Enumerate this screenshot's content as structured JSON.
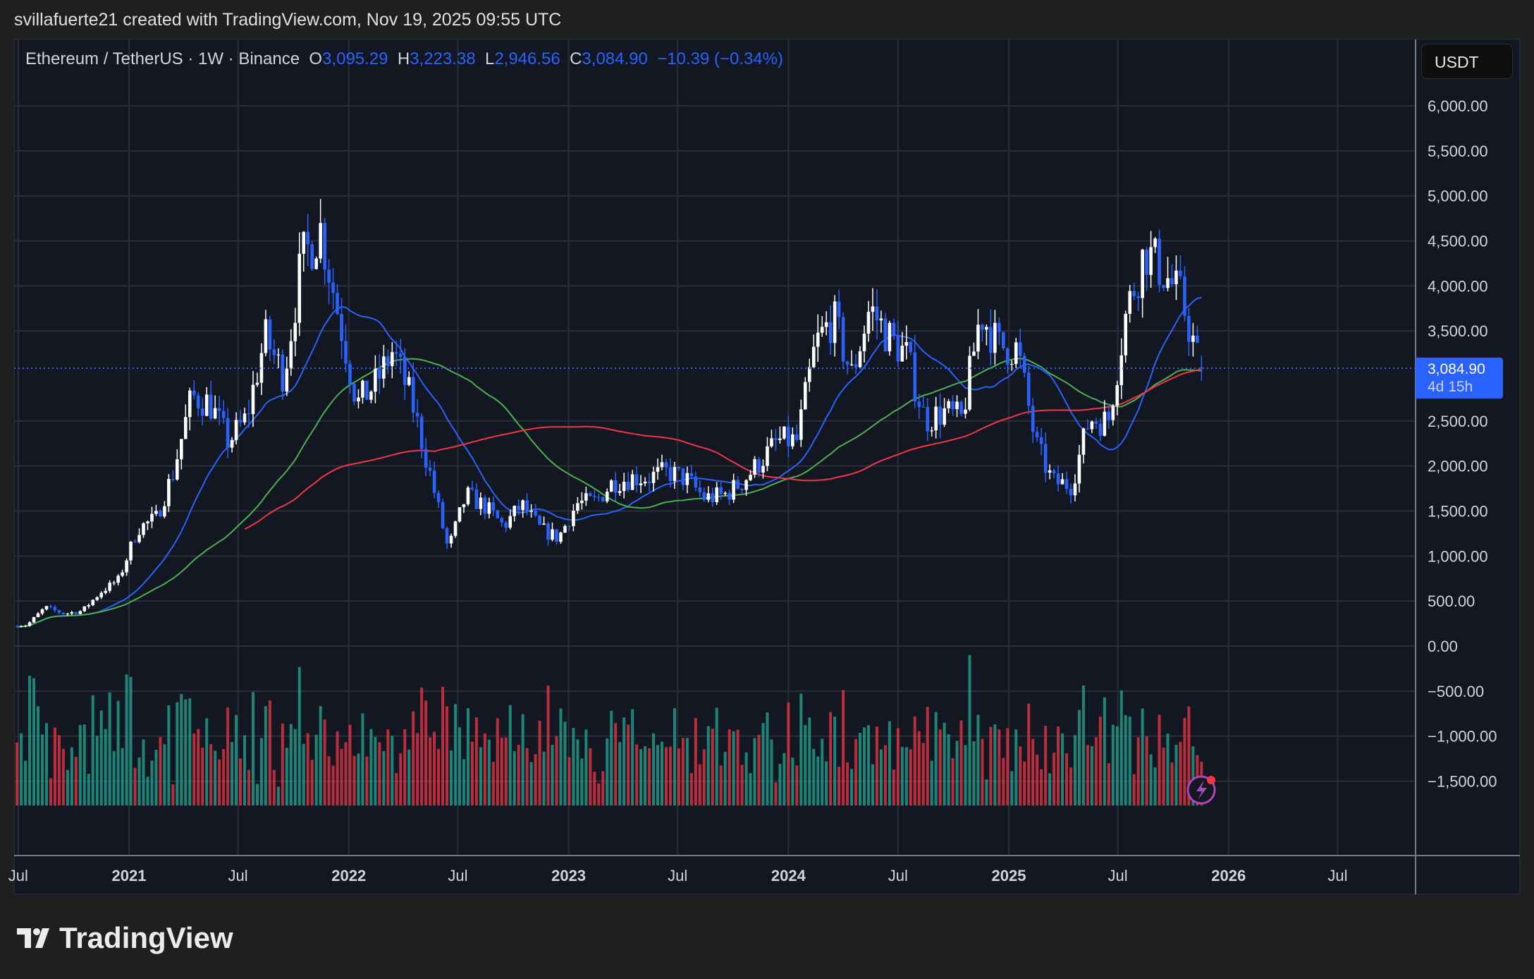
{
  "credit": "svillafuerte21 created with TradingView.com, Nov 19, 2025 09:55 UTC",
  "legend": {
    "symbol": "Ethereum / TetherUS · 1W · Binance",
    "o_label": "O",
    "o": "3,095.29",
    "h_label": "H",
    "h": "3,223.38",
    "l_label": "L",
    "l": "2,946.56",
    "c_label": "C",
    "c": "3,084.90",
    "change": "−10.39 (−0.34%)"
  },
  "currency_button": "USDT",
  "price_label": {
    "price": "3,084.90",
    "countdown": "4d 15h"
  },
  "logo_text": "TradingView",
  "colors": {
    "up": "#ffffff",
    "down": "#2962ff",
    "ma_fast": "#2962ff",
    "ma_mid": "#4caf50",
    "ma_slow": "#f23645",
    "vol_up": "#22ab94",
    "vol_down": "#f23645",
    "accent": "#2962ff"
  },
  "chart_data": {
    "type": "candlestick",
    "interval": "1W",
    "y_ticks": [
      "6,000.00",
      "5,500.00",
      "5,000.00",
      "4,500.00",
      "4,000.00",
      "3,500.00",
      "2,500.00",
      "2,000.00",
      "1,500.00",
      "1,000.00",
      "500.00",
      "0.00",
      "−500.00",
      "−1,000.00",
      "−1,500.00"
    ],
    "y_tick_values": [
      6000,
      5500,
      5000,
      4500,
      4000,
      3500,
      2500,
      2000,
      1500,
      1000,
      500,
      0,
      -500,
      -1000,
      -1500
    ],
    "ylim": [
      -1500,
      6000
    ],
    "x_ticks": [
      {
        "label": "Jul",
        "date": "2020-07",
        "bold": false
      },
      {
        "label": "2021",
        "date": "2021-01",
        "bold": true
      },
      {
        "label": "Jul",
        "date": "2021-07",
        "bold": false
      },
      {
        "label": "2022",
        "date": "2022-01",
        "bold": true
      },
      {
        "label": "Jul",
        "date": "2022-07",
        "bold": false
      },
      {
        "label": "2023",
        "date": "2023-01",
        "bold": true
      },
      {
        "label": "Jul",
        "date": "2023-07",
        "bold": false
      },
      {
        "label": "2024",
        "date": "2024-01",
        "bold": true
      },
      {
        "label": "Jul",
        "date": "2024-07",
        "bold": false
      },
      {
        "label": "2025",
        "date": "2025-01",
        "bold": true
      },
      {
        "label": "Jul",
        "date": "2025-07",
        "bold": false
      },
      {
        "label": "2026",
        "date": "2026-01",
        "bold": true
      },
      {
        "label": "Jul",
        "date": "2026-07",
        "bold": false
      }
    ],
    "current_price": 3084.9,
    "last_candle": {
      "open": 3095.29,
      "high": 3223.38,
      "low": 2946.56,
      "close": 3084.9
    },
    "monthly_closes": [
      [
        "2020-07",
        230
      ],
      [
        "2020-08",
        430
      ],
      [
        "2020-09",
        360
      ],
      [
        "2020-10",
        390
      ],
      [
        "2020-11",
        600
      ],
      [
        "2020-12",
        740
      ],
      [
        "2021-01",
        1300
      ],
      [
        "2021-02",
        1420
      ],
      [
        "2021-03",
        1920
      ],
      [
        "2021-04",
        2770
      ],
      [
        "2021-05",
        2700
      ],
      [
        "2021-06",
        2270
      ],
      [
        "2021-07",
        2530
      ],
      [
        "2021-08",
        3430
      ],
      [
        "2021-09",
        3000
      ],
      [
        "2021-10",
        4290
      ],
      [
        "2021-11",
        4630
      ],
      [
        "2021-12",
        3680
      ],
      [
        "2022-01",
        2690
      ],
      [
        "2022-02",
        2920
      ],
      [
        "2022-03",
        3280
      ],
      [
        "2022-04",
        2730
      ],
      [
        "2022-05",
        1940
      ],
      [
        "2022-06",
        1070
      ],
      [
        "2022-07",
        1680
      ],
      [
        "2022-08",
        1550
      ],
      [
        "2022-09",
        1330
      ],
      [
        "2022-10",
        1570
      ],
      [
        "2022-11",
        1300
      ],
      [
        "2022-12",
        1200
      ],
      [
        "2023-01",
        1585
      ],
      [
        "2023-02",
        1605
      ],
      [
        "2023-03",
        1820
      ],
      [
        "2023-04",
        1870
      ],
      [
        "2023-05",
        1875
      ],
      [
        "2023-06",
        1935
      ],
      [
        "2023-07",
        1855
      ],
      [
        "2023-08",
        1645
      ],
      [
        "2023-09",
        1670
      ],
      [
        "2023-10",
        1815
      ],
      [
        "2023-11",
        2050
      ],
      [
        "2023-12",
        2280
      ],
      [
        "2024-01",
        2280
      ],
      [
        "2024-02",
        3340
      ],
      [
        "2024-03",
        3650
      ],
      [
        "2024-04",
        3010
      ],
      [
        "2024-05",
        3760
      ],
      [
        "2024-06",
        3440
      ],
      [
        "2024-07",
        3230
      ],
      [
        "2024-08",
        2510
      ],
      [
        "2024-09",
        2600
      ],
      [
        "2024-10",
        2520
      ],
      [
        "2024-11",
        3700
      ],
      [
        "2024-12",
        3330
      ],
      [
        "2025-01",
        3300
      ],
      [
        "2025-02",
        2240
      ],
      [
        "2025-03",
        1820
      ],
      [
        "2025-04",
        1790
      ],
      [
        "2025-05",
        2530
      ],
      [
        "2025-06",
        2490
      ],
      [
        "2025-07",
        3700
      ],
      [
        "2025-08",
        4400
      ],
      [
        "2025-09",
        4150
      ],
      [
        "2025-10",
        3850
      ],
      [
        "2025-11",
        3085
      ]
    ],
    "moving_averages": [
      {
        "color_key": "ma_fast",
        "period": 20
      },
      {
        "color_key": "ma_mid",
        "period": 50
      },
      {
        "color_key": "ma_slow",
        "period": 100
      }
    ]
  }
}
